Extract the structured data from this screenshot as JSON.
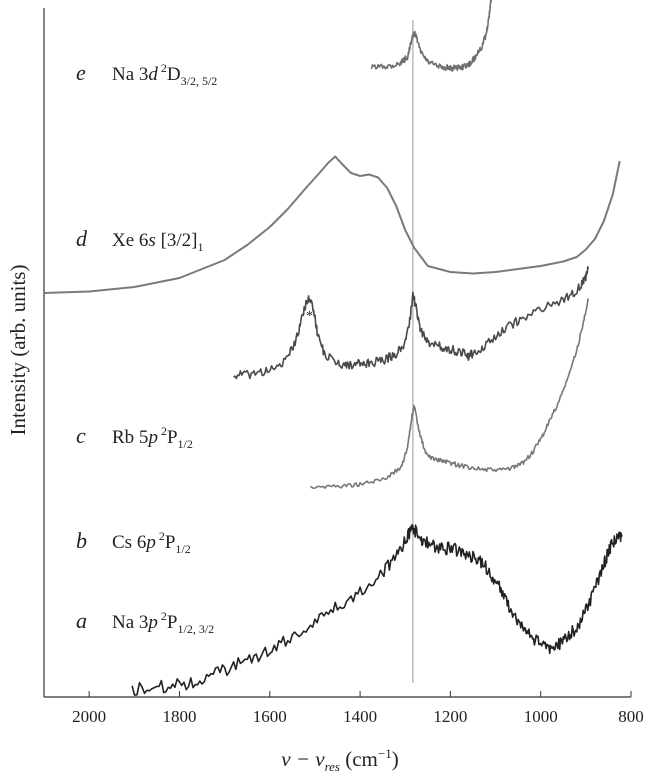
{
  "chart_data": {
    "type": "line",
    "xlabel": "v − v",
    "xlabel_sub": "res",
    "xlabel_unit_open": " (cm",
    "xlabel_unit_sup": "−1",
    "xlabel_unit_close": ")",
    "ylabel": "Intensity (arb. units)",
    "xlim": [
      2100,
      800
    ],
    "x_reversed": true,
    "xticks": [
      "2000",
      "1800",
      "1600",
      "1400",
      "1200",
      "1000",
      "800"
    ],
    "xtick_values": [
      2000,
      1800,
      1600,
      1400,
      1200,
      1000,
      800
    ],
    "reference_line_x": 1283,
    "grid": false,
    "annotation": "*",
    "annotation_x": 1512,
    "series": [
      {
        "letter": "e",
        "species": "Na 3",
        "orbital": "d",
        "sup": "2",
        "term": "D",
        "sub": "3/2, 5/2",
        "x": [
          1375,
          1350,
          1330,
          1310,
          1295,
          1285,
          1280,
          1275,
          1265,
          1250,
          1230,
          1210,
          1195,
          1180,
          1165,
          1155,
          1145,
          1130,
          1120,
          1115,
          1110,
          1105
        ],
        "y": [
          0.63,
          0.64,
          0.645,
          0.66,
          0.7,
          0.82,
          0.86,
          0.83,
          0.73,
          0.67,
          0.64,
          0.63,
          0.625,
          0.63,
          0.64,
          0.66,
          0.7,
          0.77,
          0.86,
          0.95,
          1.08,
          1.22
        ]
      },
      {
        "letter": "d",
        "species": "Xe 6",
        "orbital": "s",
        "sup": "",
        "term": " [3/2]",
        "sub": "1",
        "x": [
          2100,
          2000,
          1900,
          1800,
          1700,
          1650,
          1600,
          1560,
          1520,
          1490,
          1470,
          1455,
          1440,
          1420,
          1400,
          1380,
          1360,
          1340,
          1320,
          1300,
          1280,
          1250,
          1200,
          1150,
          1100,
          1050,
          1000,
          950,
          920,
          900,
          880,
          860,
          840,
          825
        ],
        "y": [
          0.09,
          0.095,
          0.11,
          0.14,
          0.2,
          0.25,
          0.31,
          0.37,
          0.44,
          0.49,
          0.525,
          0.545,
          0.52,
          0.49,
          0.48,
          0.485,
          0.475,
          0.44,
          0.38,
          0.3,
          0.24,
          0.18,
          0.16,
          0.155,
          0.16,
          0.17,
          0.18,
          0.195,
          0.21,
          0.235,
          0.27,
          0.33,
          0.42,
          0.53
        ]
      },
      {
        "letter": "c",
        "species": "Rb 5",
        "orbital": "p",
        "sup": "2",
        "term": "P",
        "sub": "1/2",
        "x": [
          1680,
          1650,
          1620,
          1590,
          1560,
          1540,
          1525,
          1515,
          1505,
          1495,
          1480,
          1460,
          1440,
          1420,
          1400,
          1380,
          1360,
          1340,
          1320,
          1300,
          1290,
          1283,
          1275,
          1265,
          1250,
          1230,
          1210,
          1190,
          1170,
          1160,
          1150,
          1130,
          1100,
          1070,
          1040,
          1000,
          960,
          930,
          910,
          900,
          895
        ],
        "y": [
          0.13,
          0.13,
          0.135,
          0.14,
          0.16,
          0.2,
          0.25,
          0.27,
          0.26,
          0.21,
          0.17,
          0.155,
          0.15,
          0.148,
          0.15,
          0.15,
          0.155,
          0.16,
          0.17,
          0.19,
          0.23,
          0.28,
          0.25,
          0.21,
          0.19,
          0.185,
          0.18,
          0.175,
          0.17,
          0.165,
          0.17,
          0.18,
          0.2,
          0.22,
          0.235,
          0.25,
          0.265,
          0.28,
          0.295,
          0.31,
          0.33
        ]
      },
      {
        "letter": "b",
        "species": "Cs 6",
        "orbital": "p",
        "sup": "2",
        "term": "P",
        "sub": "1/2",
        "x": [
          1510,
          1470,
          1430,
          1400,
          1370,
          1340,
          1310,
          1295,
          1285,
          1280,
          1270,
          1255,
          1240,
          1220,
          1200,
          1180,
          1150,
          1120,
          1090,
          1060,
          1040,
          1020,
          1000,
          980,
          960,
          940,
          920,
          905,
          895
        ],
        "y": [
          0.15,
          0.15,
          0.152,
          0.155,
          0.16,
          0.17,
          0.19,
          0.23,
          0.3,
          0.32,
          0.27,
          0.22,
          0.21,
          0.205,
          0.2,
          0.195,
          0.19,
          0.185,
          0.185,
          0.19,
          0.2,
          0.22,
          0.25,
          0.29,
          0.33,
          0.38,
          0.44,
          0.5,
          0.55
        ]
      },
      {
        "letter": "a",
        "species": "Na 3",
        "orbital": "p",
        "sup": "2",
        "term": "P",
        "sub": "1/2, 3/2",
        "x": [
          1905,
          1850,
          1800,
          1750,
          1700,
          1650,
          1600,
          1550,
          1500,
          1450,
          1400,
          1350,
          1320,
          1300,
          1285,
          1275,
          1260,
          1240,
          1220,
          1200,
          1180,
          1160,
          1140,
          1120,
          1100,
          1080,
          1060,
          1040,
          1020,
          1000,
          980,
          960,
          940,
          920,
          900,
          880,
          860,
          850,
          840,
          830,
          820
        ],
        "y": [
          0.0,
          0.01,
          0.015,
          0.03,
          0.06,
          0.09,
          0.12,
          0.16,
          0.21,
          0.25,
          0.3,
          0.36,
          0.4,
          0.45,
          0.49,
          0.48,
          0.45,
          0.44,
          0.43,
          0.43,
          0.42,
          0.41,
          0.4,
          0.37,
          0.33,
          0.28,
          0.23,
          0.19,
          0.16,
          0.14,
          0.13,
          0.14,
          0.16,
          0.19,
          0.24,
          0.31,
          0.38,
          0.42,
          0.45,
          0.46,
          0.47
        ]
      }
    ]
  }
}
